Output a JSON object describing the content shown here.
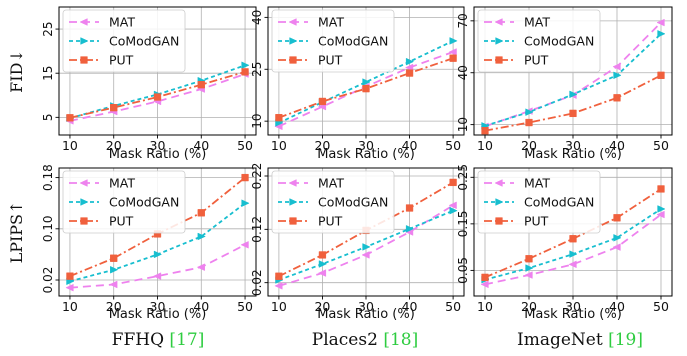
{
  "chart_data": [
    {
      "type": "line",
      "row": 0,
      "col": 0,
      "x": [
        10,
        20,
        30,
        40,
        50
      ],
      "xticks": [
        10,
        20,
        30,
        40,
        50
      ],
      "xlim": [
        7.5,
        52.5
      ],
      "xlabel": "Mask Ratio (%)",
      "ylabel": "FID↓",
      "yticks": [
        5,
        15,
        25
      ],
      "ylim": [
        1,
        30
      ],
      "legend": "top-left",
      "series": [
        {
          "name": "MAT",
          "values": [
            4.2,
            6.3,
            8.6,
            11.4,
            14.8
          ]
        },
        {
          "name": "CoModGAN",
          "values": [
            4.8,
            7.6,
            10.2,
            13.3,
            16.8
          ]
        },
        {
          "name": "PUT",
          "values": [
            4.9,
            7.2,
            9.6,
            12.4,
            15.3
          ]
        }
      ]
    },
    {
      "type": "line",
      "row": 0,
      "col": 1,
      "x": [
        10,
        20,
        30,
        40,
        50
      ],
      "xticks": [
        10,
        20,
        30,
        40,
        50
      ],
      "xlim": [
        7.5,
        52.5
      ],
      "xlabel": "Mask Ratio (%)",
      "yticks": [
        10,
        25,
        40
      ],
      "ylim": [
        6,
        43
      ],
      "legend": "top-left",
      "series": [
        {
          "name": "MAT",
          "values": [
            8.5,
            14.2,
            20.0,
            25.5,
            30.0
          ]
        },
        {
          "name": "CoModGAN",
          "values": [
            9.5,
            15.5,
            21.3,
            27.2,
            33.2
          ]
        },
        {
          "name": "PUT",
          "values": [
            11.0,
            15.7,
            19.4,
            23.9,
            28.2
          ]
        }
      ]
    },
    {
      "type": "line",
      "row": 0,
      "col": 2,
      "x": [
        10,
        20,
        30,
        40,
        50
      ],
      "xticks": [
        10,
        20,
        30,
        40,
        50
      ],
      "xlim": [
        7.5,
        52.5
      ],
      "xlabel": "Mask Ratio (%)",
      "yticks": [
        10,
        40,
        70
      ],
      "ylim": [
        4,
        78
      ],
      "legend": "top-left",
      "series": [
        {
          "name": "MAT",
          "values": [
            9.0,
            17.8,
            27.0,
            43.5,
            69.0
          ]
        },
        {
          "name": "CoModGAN",
          "values": [
            9.3,
            17.2,
            27.5,
            38.5,
            62.5
          ]
        },
        {
          "name": "PUT",
          "values": [
            6.5,
            11.2,
            16.5,
            25.5,
            38.5
          ]
        }
      ]
    },
    {
      "type": "line",
      "row": 1,
      "col": 0,
      "x": [
        10,
        20,
        30,
        40,
        50
      ],
      "xticks": [
        10,
        20,
        30,
        40,
        50
      ],
      "xlim": [
        7.5,
        52.5
      ],
      "xlabel": "Mask Ratio (%)",
      "ylabel": "LPIPS↑",
      "yticks": [
        0.02,
        0.1,
        0.18
      ],
      "yticklabels": [
        "0.02",
        "0.10",
        "0.18"
      ],
      "ylim": [
        -0.005,
        0.195
      ],
      "legend": "top-left",
      "series": [
        {
          "name": "MAT",
          "values": [
            0.008,
            0.013,
            0.026,
            0.04,
            0.075
          ]
        },
        {
          "name": "CoModGAN",
          "values": [
            0.018,
            0.036,
            0.06,
            0.088,
            0.14
          ]
        },
        {
          "name": "PUT",
          "values": [
            0.026,
            0.054,
            0.092,
            0.125,
            0.18
          ]
        }
      ]
    },
    {
      "type": "line",
      "row": 1,
      "col": 1,
      "x": [
        10,
        20,
        30,
        40,
        50
      ],
      "xticks": [
        10,
        20,
        30,
        40,
        50
      ],
      "xlim": [
        7.5,
        52.5
      ],
      "xlabel": "Mask Ratio (%)",
      "yticks": [
        0.02,
        0.12,
        0.22
      ],
      "yticklabels": [
        "0.02",
        "0.12",
        "0.22"
      ],
      "ylim": [
        -0.005,
        0.235
      ],
      "legend": "top-left",
      "series": [
        {
          "name": "MAT",
          "values": [
            0.014,
            0.038,
            0.072,
            0.115,
            0.165
          ]
        },
        {
          "name": "CoModGAN",
          "values": [
            0.025,
            0.055,
            0.087,
            0.121,
            0.155
          ]
        },
        {
          "name": "PUT",
          "values": [
            0.032,
            0.072,
            0.118,
            0.16,
            0.208
          ]
        }
      ]
    },
    {
      "type": "line",
      "row": 1,
      "col": 2,
      "x": [
        10,
        20,
        30,
        40,
        50
      ],
      "xticks": [
        10,
        20,
        30,
        40,
        50
      ],
      "xlim": [
        7.5,
        52.5
      ],
      "xlabel": "Mask Ratio (%)",
      "yticks": [
        0.05,
        0.15,
        0.25
      ],
      "yticklabels": [
        "0.05",
        "0.15",
        "0.25"
      ],
      "ylim": [
        -0.005,
        0.27
      ],
      "legend": "top-left",
      "series": [
        {
          "name": "MAT",
          "values": [
            0.02,
            0.04,
            0.063,
            0.1,
            0.17
          ]
        },
        {
          "name": "CoModGAN",
          "values": [
            0.03,
            0.055,
            0.085,
            0.12,
            0.182
          ]
        },
        {
          "name": "PUT",
          "values": [
            0.035,
            0.075,
            0.118,
            0.163,
            0.225
          ]
        }
      ]
    }
  ],
  "styles": {
    "MAT": {
      "color": "#ee82ee",
      "dash": "8,5",
      "marker": "triangle-left"
    },
    "CoModGAN": {
      "color": "#17becf",
      "dash": "4,3",
      "marker": "triangle-right"
    },
    "PUT": {
      "color": "#f0603d",
      "dash": "8,3,2,3",
      "marker": "square"
    }
  },
  "captions": [
    {
      "name": "FFHQ",
      "cite": "17"
    },
    {
      "name": "Places2",
      "cite": "18"
    },
    {
      "name": "ImageNet",
      "cite": "19"
    }
  ]
}
